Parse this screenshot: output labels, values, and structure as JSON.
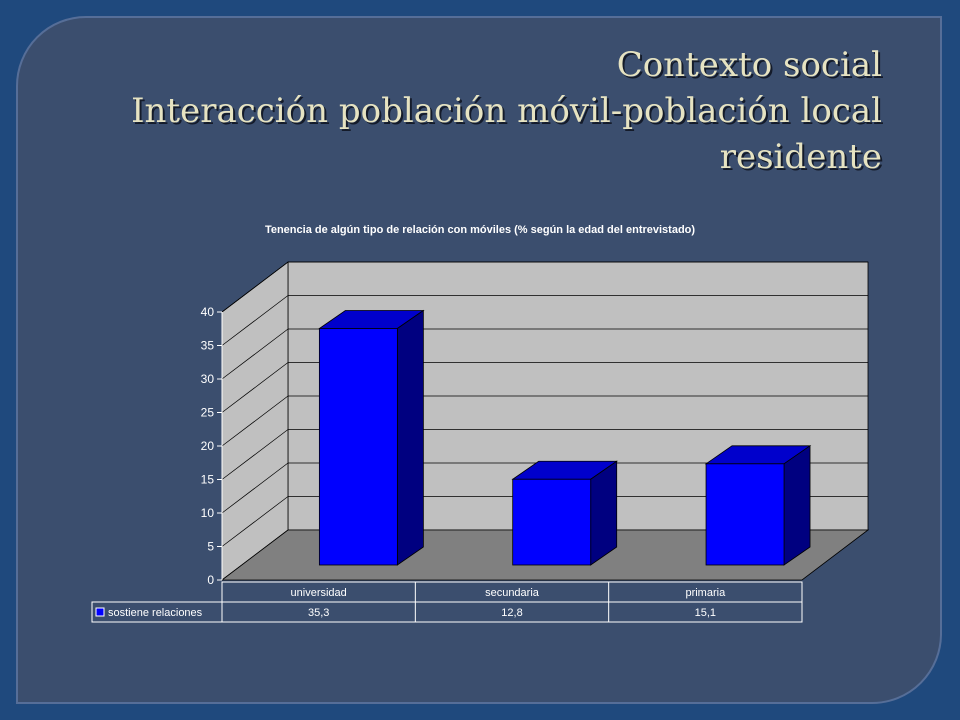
{
  "slide": {
    "title_line1": "Contexto social",
    "title_line2": "Interacción población móvil-población local",
    "title_line3": "residente"
  },
  "colors": {
    "background": "#1f497d",
    "panel": "#3b4e6e",
    "title": "#e6e3c2",
    "bar_front": "#0000ff",
    "bar_side": "#000080",
    "bar_top": "#0000cc",
    "wall": "#c0c0c0",
    "floor": "#808080"
  },
  "chart_data": {
    "type": "bar",
    "title": "Tenencia de algún tipo de relación con móviles (% según la edad del entrevistado)",
    "categories": [
      "universidad",
      "secundaria",
      "primaria"
    ],
    "series": [
      {
        "name": "sostiene relaciones",
        "values": [
          35.3,
          12.8,
          15.1
        ],
        "labels": [
          "35,3",
          "12,8",
          "15,1"
        ]
      }
    ],
    "ylim": [
      0,
      40
    ],
    "yticks": [
      0,
      5,
      10,
      15,
      20,
      25,
      30,
      35,
      40
    ],
    "grid": true,
    "legend": "data-table",
    "three_d": true
  }
}
